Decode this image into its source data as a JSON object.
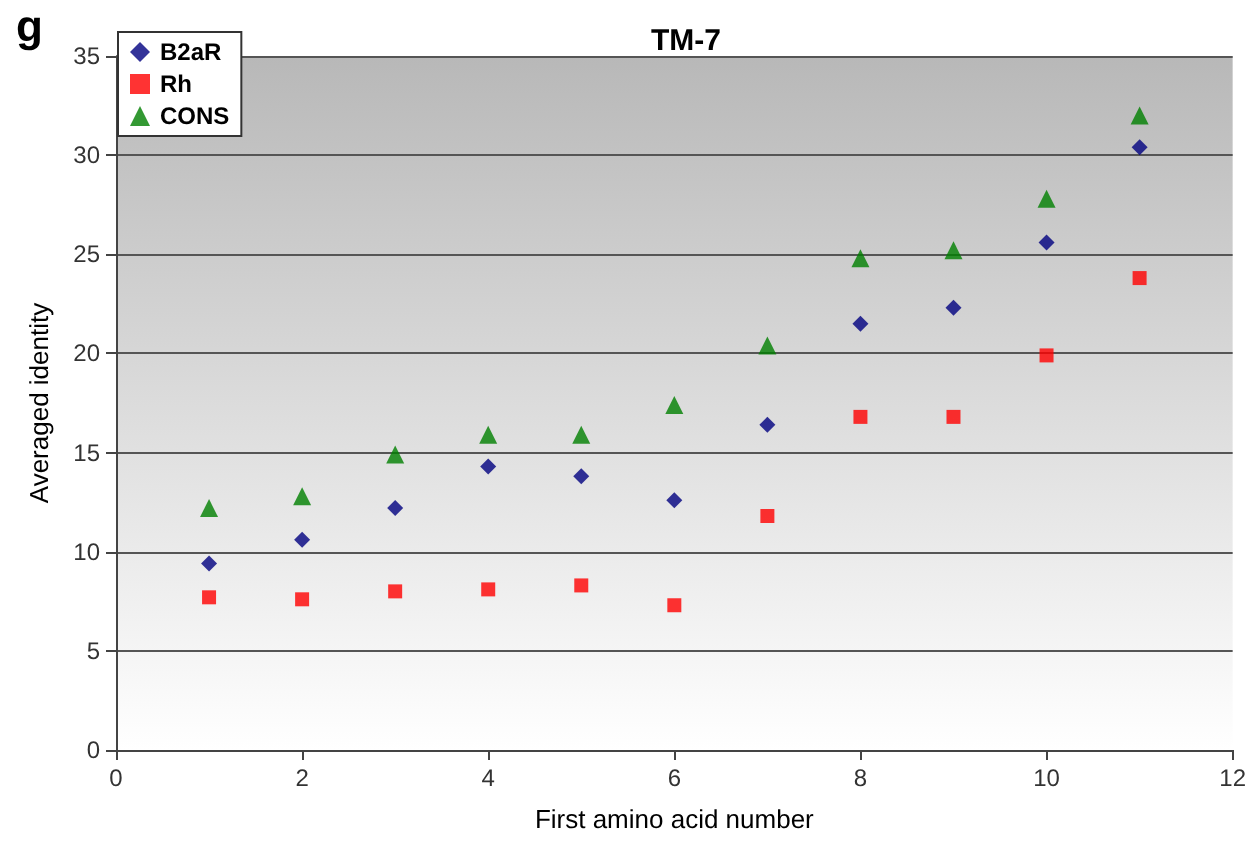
{
  "chart_data": {
    "type": "scatter",
    "title": "TM-7",
    "xlabel": "First amino acid number",
    "ylabel": "Averaged identity",
    "annotations": [
      "g"
    ],
    "x": [
      1,
      2,
      3,
      4,
      5,
      6,
      7,
      8,
      9,
      10,
      11
    ],
    "series": [
      {
        "name": "B2aR",
        "color": "#000080",
        "marker": "diamond",
        "values": [
          9.4,
          10.6,
          12.2,
          14.3,
          13.8,
          12.6,
          16.4,
          21.5,
          22.3,
          25.6,
          30.4
        ]
      },
      {
        "name": "Rh",
        "color": "#ff0000",
        "marker": "square",
        "values": [
          7.7,
          7.6,
          8.0,
          8.1,
          8.3,
          7.3,
          11.8,
          16.8,
          16.8,
          19.9,
          23.8
        ]
      },
      {
        "name": "CONS",
        "color": "#008000",
        "marker": "triangle",
        "values": [
          12.2,
          12.8,
          14.9,
          15.9,
          15.9,
          17.4,
          20.4,
          24.8,
          25.2,
          27.8,
          32.0
        ]
      }
    ],
    "xlim": [
      0,
      12
    ],
    "xticks": [
      0,
      2,
      4,
      6,
      8,
      10,
      12
    ],
    "ylim": [
      0,
      35
    ],
    "yticks": [
      0,
      5,
      10,
      15,
      20,
      25,
      30,
      35
    ],
    "grid": "y",
    "legend": "top left"
  }
}
